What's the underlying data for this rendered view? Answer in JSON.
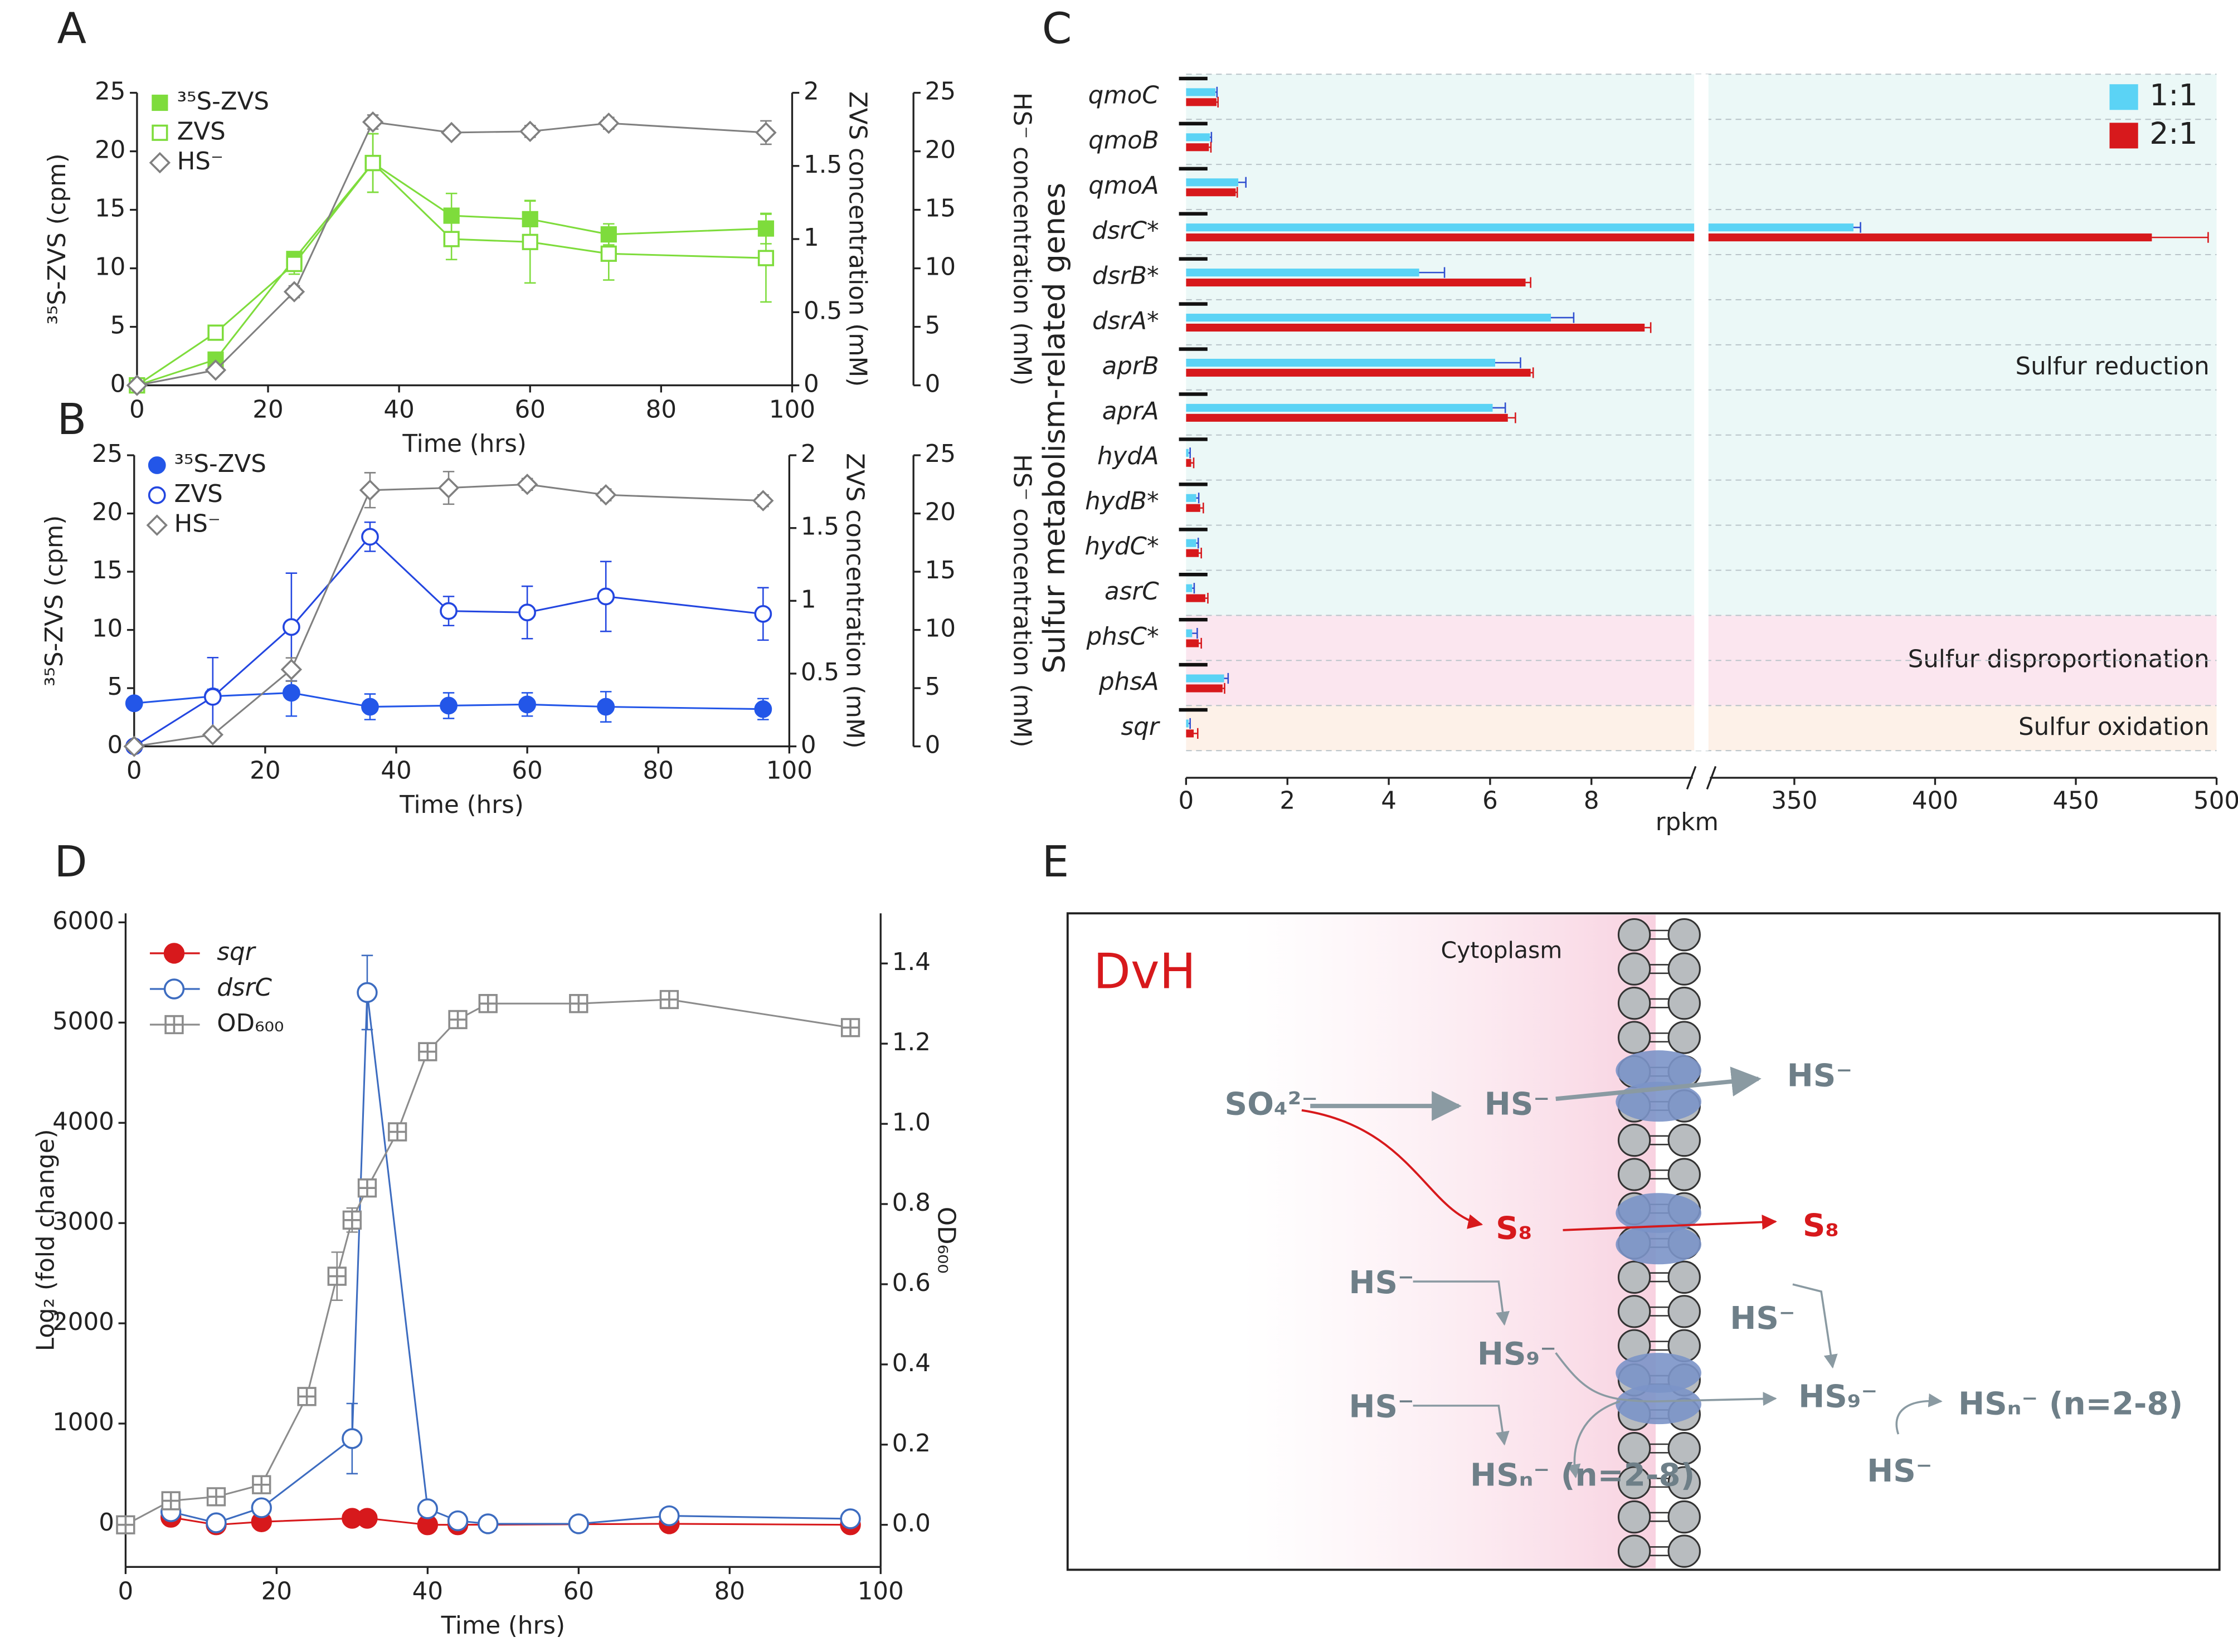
{
  "chart_data": [
    {
      "panel": "A",
      "type": "line",
      "x_label": "Time (hrs)",
      "y_label": "³⁵S-ZVS  (cpm)",
      "y2_label": "ZVS concentration (mM)",
      "y3_label": "HS⁻ concentration (mM)",
      "xlim": [
        0,
        100
      ],
      "xticks": [
        0,
        20,
        40,
        60,
        80,
        100
      ],
      "ylim": [
        0,
        25
      ],
      "yticks": [
        0,
        5,
        10,
        15,
        20,
        25
      ],
      "y2lim": [
        0,
        2
      ],
      "y2ticks": [
        0,
        0.5,
        1,
        1.5,
        2
      ],
      "y3lim": [
        0,
        25
      ],
      "y3ticks": [
        0,
        5,
        10,
        15,
        20,
        25
      ],
      "legend": "upper left",
      "series": [
        {
          "name": "³⁵S-ZVS",
          "color": "#7edc3c",
          "marker": "square-filled",
          "x": [
            0,
            12,
            24,
            36,
            48,
            60,
            72,
            96
          ],
          "values": [
            0,
            2.2,
            10.8,
            19,
            14.5,
            14.2,
            12.9,
            13.4
          ],
          "errors": [
            0,
            0.3,
            0.6,
            2.5,
            1.9,
            1.6,
            0.9,
            1.3
          ]
        },
        {
          "name": "ZVS",
          "color": "#7edc3c",
          "marker": "square-open",
          "axis": "y2",
          "x": [
            0,
            12,
            24,
            36,
            48,
            60,
            72,
            96
          ],
          "values": [
            0,
            0.36,
            0.83,
            1.52,
            1,
            0.98,
            0.9,
            0.87
          ],
          "errors": [
            0,
            0.02,
            0.07,
            0.2,
            0.14,
            0.28,
            0.18,
            0.3
          ]
        },
        {
          "name": "HS⁻",
          "color": "#808080",
          "marker": "diamond-open",
          "axis": "y3",
          "x": [
            0,
            12,
            24,
            36,
            48,
            60,
            72,
            96
          ],
          "values": [
            0,
            1.3,
            8,
            22.5,
            21.6,
            21.7,
            22.4,
            21.6
          ],
          "errors": [
            0,
            0.3,
            0.5,
            0.6,
            0.4,
            0.5,
            0.5,
            1
          ]
        }
      ]
    },
    {
      "panel": "B",
      "type": "line",
      "x_label": "Time (hrs)",
      "y_label": "³⁵S-ZVS  (cpm)",
      "y2_label": "ZVS concentration (mM)",
      "y3_label": "HS⁻ concentration (mM)",
      "xlim": [
        0,
        100
      ],
      "xticks": [
        0,
        20,
        40,
        60,
        80,
        100
      ],
      "ylim": [
        0,
        25
      ],
      "yticks": [
        0,
        5,
        10,
        15,
        20,
        25
      ],
      "y2lim": [
        0,
        2
      ],
      "y2ticks": [
        0,
        0.5,
        1,
        1.5,
        2
      ],
      "y3lim": [
        0,
        25
      ],
      "y3ticks": [
        0,
        5,
        10,
        15,
        20,
        25
      ],
      "legend": "upper left",
      "series": [
        {
          "name": "³⁵S-ZVS",
          "color": "#2356e8",
          "marker": "circle-filled",
          "x": [
            0,
            12,
            24,
            36,
            48,
            60,
            72,
            96
          ],
          "values": [
            3.7,
            4.3,
            4.6,
            3.4,
            3.5,
            3.6,
            3.4,
            3.2
          ],
          "errors": [
            0.3,
            0.6,
            2,
            1.1,
            1.1,
            1,
            1.3,
            0.9
          ]
        },
        {
          "name": "ZVS",
          "color": "#2346e0",
          "marker": "circle-open",
          "axis": "y2",
          "x": [
            0,
            12,
            24,
            36,
            48,
            60,
            72,
            96
          ],
          "values": [
            0,
            0.34,
            0.82,
            1.44,
            0.93,
            0.92,
            1.03,
            0.91
          ],
          "errors": [
            0,
            0.27,
            0.37,
            0.1,
            0.1,
            0.18,
            0.24,
            0.18
          ]
        },
        {
          "name": "HS⁻",
          "color": "#808080",
          "marker": "diamond-open",
          "axis": "y3",
          "x": [
            0,
            12,
            24,
            36,
            48,
            60,
            72,
            96
          ],
          "values": [
            0,
            1,
            6.6,
            22,
            22.2,
            22.5,
            21.6,
            21.1
          ],
          "errors": [
            0,
            0.3,
            1,
            1.5,
            1.4,
            0.5,
            0.5,
            0.5
          ]
        }
      ]
    },
    {
      "panel": "C",
      "type": "hbar",
      "x_label": "rpkm",
      "y_label": "Sulfur metabolism-related genes",
      "categories": [
        "qmoC",
        "qmoB",
        "qmoA",
        "dsrC*",
        "dsrB*",
        "dsrA*",
        "aprB",
        "aprA",
        "hydA",
        "hydB*",
        "hydC*",
        "asrC",
        "phsC*",
        "phsA",
        "sqr"
      ],
      "xlim": [
        0,
        500
      ],
      "xbreak": [
        10,
        320
      ],
      "xticks": [
        0,
        2,
        4,
        6,
        8,
        350,
        400,
        450,
        500
      ],
      "legend": "upper right",
      "series": [
        {
          "name": "1:1",
          "color": "#5bd3f5",
          "error_color": "#3050d0",
          "values": [
            0.58,
            0.47,
            1.03,
            371,
            4.6,
            7.2,
            6.1,
            6.05,
            0.05,
            0.2,
            0.2,
            0.12,
            0.12,
            0.75,
            0.05
          ],
          "errors": [
            0.03,
            0.03,
            0.15,
            2.5,
            0.5,
            0.45,
            0.5,
            0.25,
            0.03,
            0.05,
            0.04,
            0.04,
            0.1,
            0.08,
            0.03
          ]
        },
        {
          "name": "2:1",
          "color": "#d7191c",
          "error_color": "#d7191c",
          "values": [
            0.6,
            0.45,
            0.98,
            477,
            6.7,
            9.05,
            6.8,
            6.35,
            0.1,
            0.28,
            0.25,
            0.38,
            0.25,
            0.72,
            0.15
          ],
          "errors": [
            0.03,
            0.04,
            0.03,
            20,
            0.1,
            0.12,
            0.05,
            0.15,
            0.05,
            0.06,
            0.05,
            0.05,
            0.05,
            0.04,
            0.08
          ]
        }
      ],
      "regions": [
        {
          "label": "Sulfur reduction",
          "color": "#ebf8f7",
          "first": "qmoC",
          "last": "asrC"
        },
        {
          "label": "Sulfur disproportionation",
          "color": "#fbe6ef",
          "first": "phsC*",
          "last": "phsA"
        },
        {
          "label": "Sulfur oxidation",
          "color": "#fdf1e8",
          "first": "sqr",
          "last": "sqr"
        }
      ]
    },
    {
      "panel": "D",
      "type": "line",
      "x_label": "Time (hrs)",
      "y_label": "Log₂ (fold change)",
      "y2_label": "OD₆₀₀",
      "xlim": [
        0,
        100
      ],
      "xticks": [
        0,
        20,
        40,
        60,
        80,
        100
      ],
      "ylim": [
        -430,
        6090
      ],
      "yticks": [
        0,
        1000,
        2000,
        3000,
        4000,
        5000,
        6000
      ],
      "y2lim": [
        -0.105,
        1.525
      ],
      "y2ticks": [
        {
          "value": 0,
          "label": "0.0"
        },
        0.2,
        0.4,
        0.6,
        0.8,
        {
          "value": 1,
          "label": "1.0"
        },
        1.2,
        1.4
      ],
      "legend": "upper left",
      "series": [
        {
          "name": "sqr",
          "color": "#d7191c",
          "marker": "circle-filled",
          "x": [
            6,
            12,
            18,
            30,
            32,
            40,
            44,
            72,
            96
          ],
          "values": [
            65,
            -10,
            20,
            55,
            55,
            -10,
            -10,
            0,
            -10
          ],
          "errors": [
            10,
            10,
            10,
            10,
            10,
            10,
            10,
            10,
            10
          ]
        },
        {
          "name": "dsrC",
          "color": "#3d6cc0",
          "marker": "circle-open",
          "x": [
            6,
            12,
            18,
            30,
            32,
            40,
            44,
            48,
            60,
            72,
            96
          ],
          "values": [
            120,
            10,
            160,
            850,
            5300,
            150,
            30,
            0,
            0,
            80,
            50
          ],
          "errors": [
            20,
            10,
            20,
            350,
            370,
            30,
            10,
            10,
            10,
            20,
            10
          ]
        },
        {
          "name": "OD₆₀₀",
          "color": "#8c8c8c",
          "marker": "square-cross",
          "axis": "y2",
          "x": [
            0,
            6,
            12,
            18,
            24,
            28,
            30,
            32,
            36,
            40,
            44,
            48,
            60,
            72,
            96
          ],
          "values": [
            0,
            0.06,
            0.07,
            0.1,
            0.32,
            0.62,
            0.76,
            0.84,
            0.98,
            1.18,
            1.26,
            1.3,
            1.3,
            1.31,
            1.24
          ],
          "errors": [
            0,
            0.01,
            0.01,
            0.01,
            0.01,
            0.06,
            0.03,
            0.02,
            0.01,
            0.01,
            0.01,
            0.01,
            0.01,
            0.01,
            0.01
          ]
        }
      ]
    }
  ],
  "diagram": {
    "panel": "E",
    "title": "DvH",
    "compartment": "Cytoplasm",
    "labels": [
      "SO₄²⁻",
      "HS⁻",
      "HS⁻",
      "S₈",
      "S₈",
      "HS⁻",
      "HS₉⁻",
      "HS⁻",
      "HSₙ⁻ (n=2-8)",
      "HS⁻",
      "HS₉⁻",
      "HSₙ⁻ (n=2-8)",
      "HS⁻"
    ]
  }
}
